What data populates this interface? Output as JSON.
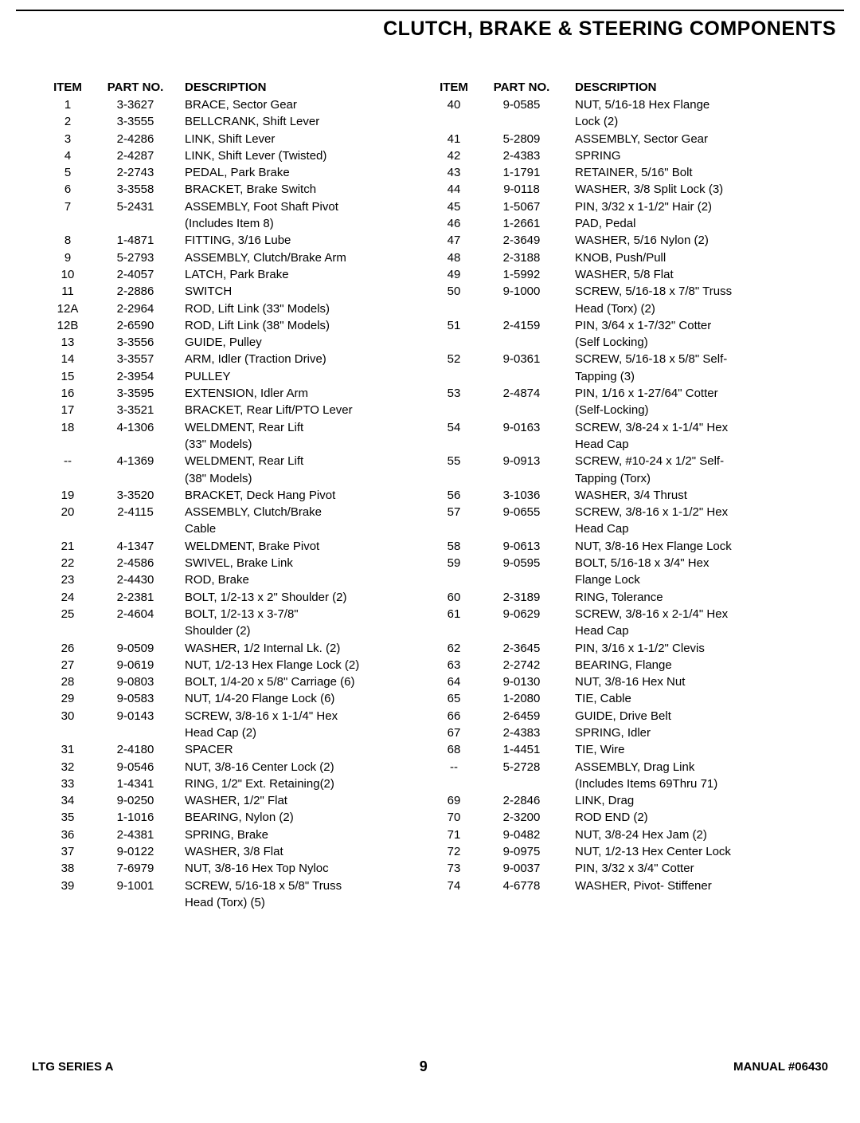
{
  "title": "CLUTCH, BRAKE & STEERING COMPONENTS",
  "headers": {
    "item": "ITEM",
    "part": "PART NO.",
    "desc": "DESCRIPTION"
  },
  "leftRows": [
    {
      "item": "1",
      "part": "3-3627",
      "desc": "BRACE, Sector Gear"
    },
    {
      "item": "2",
      "part": "3-3555",
      "desc": "BELLCRANK, Shift Lever"
    },
    {
      "item": "3",
      "part": "2-4286",
      "desc": "LINK, Shift Lever"
    },
    {
      "item": "4",
      "part": "2-4287",
      "desc": "LINK, Shift Lever (Twisted)"
    },
    {
      "item": "5",
      "part": "2-2743",
      "desc": "PEDAL, Park Brake"
    },
    {
      "item": "6",
      "part": "3-3558",
      "desc": "BRACKET, Brake Switch"
    },
    {
      "item": "7",
      "part": "5-2431",
      "desc": "ASSEMBLY, Foot Shaft Pivot"
    },
    {
      "item": "",
      "part": "",
      "desc": "(Includes Item 8)"
    },
    {
      "item": "8",
      "part": "1-4871",
      "desc": "FITTING, 3/16 Lube"
    },
    {
      "item": "9",
      "part": "5-2793",
      "desc": "ASSEMBLY, Clutch/Brake Arm"
    },
    {
      "item": "10",
      "part": "2-4057",
      "desc": "LATCH, Park Brake"
    },
    {
      "item": "11",
      "part": "2-2886",
      "desc": "SWITCH"
    },
    {
      "item": "12A",
      "part": "2-2964",
      "desc": "ROD, Lift Link (33\" Models)"
    },
    {
      "item": "12B",
      "part": "2-6590",
      "desc": "ROD, Lift Link (38\" Models)"
    },
    {
      "item": "13",
      "part": "3-3556",
      "desc": "GUIDE, Pulley"
    },
    {
      "item": "14",
      "part": "3-3557",
      "desc": "ARM, Idler (Traction Drive)"
    },
    {
      "item": "15",
      "part": "2-3954",
      "desc": "PULLEY"
    },
    {
      "item": "16",
      "part": "3-3595",
      "desc": "EXTENSION, Idler Arm"
    },
    {
      "item": "17",
      "part": "3-3521",
      "desc": "BRACKET, Rear Lift/PTO Lever"
    },
    {
      "item": "18",
      "part": "4-1306",
      "desc": "WELDMENT, Rear Lift"
    },
    {
      "item": "",
      "part": "",
      "desc": "(33\" Models)"
    },
    {
      "item": "--",
      "part": "4-1369",
      "desc": "WELDMENT, Rear Lift"
    },
    {
      "item": "",
      "part": "",
      "desc": "(38\" Models)"
    },
    {
      "item": "19",
      "part": "3-3520",
      "desc": "BRACKET, Deck Hang Pivot"
    },
    {
      "item": "20",
      "part": "2-4115",
      "desc": "ASSEMBLY, Clutch/Brake"
    },
    {
      "item": "",
      "part": "",
      "desc": "Cable"
    },
    {
      "item": "21",
      "part": "4-1347",
      "desc": "WELDMENT, Brake Pivot"
    },
    {
      "item": "22",
      "part": "2-4586",
      "desc": "SWIVEL, Brake Link"
    },
    {
      "item": "23",
      "part": "2-4430",
      "desc": "ROD, Brake"
    },
    {
      "item": "24",
      "part": "2-2381",
      "desc": "BOLT, 1/2-13 x 2\" Shoulder (2)"
    },
    {
      "item": "25",
      "part": "2-4604",
      "desc": "BOLT, 1/2-13 x 3-7/8\""
    },
    {
      "item": "",
      "part": "",
      "desc": "Shoulder (2)"
    },
    {
      "item": "26",
      "part": "9-0509",
      "desc": "WASHER, 1/2 Internal Lk. (2)"
    },
    {
      "item": "27",
      "part": "9-0619",
      "desc": "NUT, 1/2-13 Hex Flange Lock (2)"
    },
    {
      "item": "28",
      "part": "9-0803",
      "desc": "BOLT, 1/4-20 x 5/8\" Carriage (6)"
    },
    {
      "item": "29",
      "part": "9-0583",
      "desc": "NUT, 1/4-20 Flange Lock (6)"
    },
    {
      "item": "30",
      "part": "9-0143",
      "desc": "SCREW, 3/8-16 x 1-1/4\" Hex"
    },
    {
      "item": "",
      "part": "",
      "desc": "Head Cap (2)"
    },
    {
      "item": "31",
      "part": "2-4180",
      "desc": "SPACER"
    },
    {
      "item": "32",
      "part": "9-0546",
      "desc": "NUT, 3/8-16 Center Lock (2)"
    },
    {
      "item": "33",
      "part": "1-4341",
      "desc": "RING, 1/2\" Ext. Retaining(2)"
    },
    {
      "item": "34",
      "part": "9-0250",
      "desc": "WASHER, 1/2\" Flat"
    },
    {
      "item": "35",
      "part": "1-1016",
      "desc": "BEARING, Nylon (2)"
    },
    {
      "item": "36",
      "part": "2-4381",
      "desc": "SPRING, Brake"
    },
    {
      "item": "37",
      "part": "9-0122",
      "desc": "WASHER, 3/8 Flat"
    },
    {
      "item": "38",
      "part": "7-6979",
      "desc": "NUT, 3/8-16 Hex Top Nyloc"
    },
    {
      "item": "39",
      "part": "9-1001",
      "desc": "SCREW, 5/16-18 x 5/8\" Truss"
    },
    {
      "item": "",
      "part": "",
      "desc": "Head (Torx) (5)"
    }
  ],
  "rightRows": [
    {
      "item": "40",
      "part": "9-0585",
      "desc": "NUT, 5/16-18 Hex Flange"
    },
    {
      "item": "",
      "part": "",
      "desc": "Lock (2)"
    },
    {
      "item": "41",
      "part": "5-2809",
      "desc": "ASSEMBLY, Sector Gear"
    },
    {
      "item": "42",
      "part": "2-4383",
      "desc": "SPRING"
    },
    {
      "item": "43",
      "part": "1-1791",
      "desc": "RETAINER, 5/16\" Bolt"
    },
    {
      "item": "44",
      "part": "9-0118",
      "desc": "WASHER, 3/8 Split Lock (3)"
    },
    {
      "item": "45",
      "part": "1-5067",
      "desc": "PIN, 3/32 x 1-1/2\" Hair (2)"
    },
    {
      "item": "46",
      "part": "1-2661",
      "desc": "PAD, Pedal"
    },
    {
      "item": "47",
      "part": "2-3649",
      "desc": "WASHER, 5/16 Nylon (2)"
    },
    {
      "item": "48",
      "part": "2-3188",
      "desc": "KNOB, Push/Pull"
    },
    {
      "item": "49",
      "part": "1-5992",
      "desc": "WASHER, 5/8 Flat"
    },
    {
      "item": "50",
      "part": "9-1000",
      "desc": "SCREW, 5/16-18 x 7/8\" Truss"
    },
    {
      "item": "",
      "part": "",
      "desc": "Head (Torx) (2)"
    },
    {
      "item": "51",
      "part": "2-4159",
      "desc": "PIN, 3/64 x 1-7/32\" Cotter"
    },
    {
      "item": "",
      "part": "",
      "desc": "(Self Locking)"
    },
    {
      "item": "52",
      "part": "9-0361",
      "desc": "SCREW, 5/16-18 x 5/8\" Self-"
    },
    {
      "item": "",
      "part": "",
      "desc": "Tapping (3)"
    },
    {
      "item": "53",
      "part": "2-4874",
      "desc": "PIN, 1/16 x 1-27/64\" Cotter"
    },
    {
      "item": "",
      "part": "",
      "desc": "(Self-Locking)"
    },
    {
      "item": "54",
      "part": "9-0163",
      "desc": "SCREW, 3/8-24 x 1-1/4\" Hex"
    },
    {
      "item": "",
      "part": "",
      "desc": "Head Cap"
    },
    {
      "item": "55",
      "part": "9-0913",
      "desc": "SCREW, #10-24 x 1/2\" Self-"
    },
    {
      "item": "",
      "part": "",
      "desc": "Tapping (Torx)"
    },
    {
      "item": "56",
      "part": "3-1036",
      "desc": "WASHER, 3/4 Thrust"
    },
    {
      "item": "57",
      "part": "9-0655",
      "desc": "SCREW, 3/8-16 x 1-1/2\" Hex"
    },
    {
      "item": "",
      "part": "",
      "desc": "Head Cap"
    },
    {
      "item": "58",
      "part": "9-0613",
      "desc": "NUT, 3/8-16 Hex Flange Lock"
    },
    {
      "item": "59",
      "part": "9-0595",
      "desc": "BOLT, 5/16-18 x 3/4\" Hex"
    },
    {
      "item": "",
      "part": "",
      "desc": "Flange Lock"
    },
    {
      "item": "60",
      "part": "2-3189",
      "desc": "RING, Tolerance"
    },
    {
      "item": "61",
      "part": "9-0629",
      "desc": "SCREW, 3/8-16 x 2-1/4\" Hex"
    },
    {
      "item": "",
      "part": "",
      "desc": "Head Cap"
    },
    {
      "item": "62",
      "part": "2-3645",
      "desc": "PIN, 3/16 x 1-1/2\" Clevis"
    },
    {
      "item": "63",
      "part": "2-2742",
      "desc": "BEARING, Flange"
    },
    {
      "item": "64",
      "part": "9-0130",
      "desc": "NUT, 3/8-16 Hex Nut"
    },
    {
      "item": "65",
      "part": "1-2080",
      "desc": "TIE, Cable"
    },
    {
      "item": "66",
      "part": "2-6459",
      "desc": "GUIDE, Drive Belt"
    },
    {
      "item": "67",
      "part": "2-4383",
      "desc": "SPRING, Idler"
    },
    {
      "item": "68",
      "part": "1-4451",
      "desc": "TIE, Wire"
    },
    {
      "item": "--",
      "part": "5-2728",
      "desc": "ASSEMBLY, Drag Link"
    },
    {
      "item": "",
      "part": "",
      "desc": "  (Includes Items 69Thru 71)"
    },
    {
      "item": "69",
      "part": "2-2846",
      "desc": "LINK, Drag"
    },
    {
      "item": "70",
      "part": "2-3200",
      "desc": "ROD END (2)"
    },
    {
      "item": "71",
      "part": "9-0482",
      "desc": "NUT, 3/8-24 Hex Jam (2)"
    },
    {
      "item": "72",
      "part": "9-0975",
      "desc": "NUT, 1/2-13 Hex Center Lock"
    },
    {
      "item": "73",
      "part": "9-0037",
      "desc": "PIN, 3/32 x 3/4\" Cotter"
    },
    {
      "item": "74",
      "part": "4-6778",
      "desc": "WASHER, Pivot- Stiffener"
    }
  ],
  "footer": {
    "left": "LTG SERIES A",
    "page": "9",
    "right": "MANUAL #06430"
  }
}
